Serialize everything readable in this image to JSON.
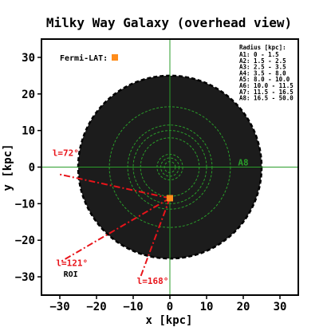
{
  "chart_data": {
    "type": "scatter",
    "title": "Milky Way Galaxy (overhead view)",
    "xlabel": "x [kpc]",
    "ylabel": "y [kpc]",
    "xlim": [
      -35,
      35
    ],
    "ylim": [
      -35,
      35
    ],
    "x_ticks": [
      -30,
      -20,
      -10,
      0,
      10,
      20,
      30
    ],
    "y_ticks": [
      30,
      20,
      10,
      0,
      -10,
      -20,
      -30
    ],
    "x_tick_labels": [
      "−30",
      "−20",
      "−10",
      "0",
      "10",
      "20",
      "30"
    ],
    "y_tick_labels": [
      "30",
      "20",
      "10",
      "0",
      "−10",
      "−20",
      "−30"
    ],
    "galaxy": {
      "radius_kpc": 25,
      "fill": "#1c1c1c",
      "edge": "#000000"
    },
    "ring_radii_kpc": [
      1.5,
      2.5,
      3.5,
      8.0,
      10.0,
      11.5,
      16.5
    ],
    "ring_color": "#2a9d2a",
    "crosshair_color": "#2a9d2a",
    "active_ring_label": "A8",
    "observer": {
      "name": "Fermi-LAT:",
      "x": 0,
      "y": -8.5,
      "color": "#ff8c1a"
    },
    "sightlines": [
      {
        "label": "l=72°",
        "end_x": -30,
        "end_y": -2,
        "label_x": -32,
        "label_y": 3
      },
      {
        "label": "l=121°",
        "end_x": -30,
        "end_y": -26,
        "label_x": -31,
        "label_y": -27
      },
      {
        "label": "l=168°",
        "end_x": -8,
        "end_y": -30,
        "label_x": -9,
        "label_y": -32
      }
    ],
    "sightline_color": "#e8141a",
    "roi_label": "ROI",
    "roi_label_pos": {
      "x": -29,
      "y": -30
    },
    "legend": {
      "title": "Radius [kpc]:",
      "entries": [
        "A1: 0 - 1.5",
        "A2: 1.5 - 2.5",
        "A3: 2.5 - 3.5",
        "A4: 3.5 - 8.0",
        "A5: 8.0 - 10.0",
        "A6: 10.0 - 11.5",
        "A7: 11.5 - 16.5",
        "A8: 16.5 - 50.0"
      ],
      "placement": "top-right"
    }
  }
}
